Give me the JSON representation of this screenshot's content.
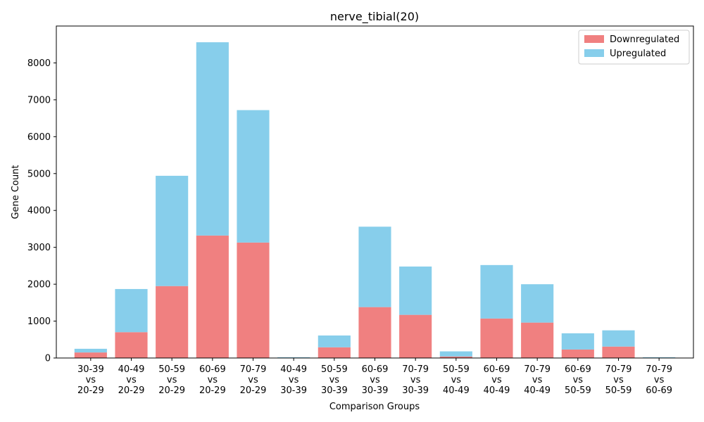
{
  "chart_data": {
    "type": "bar",
    "stacked": true,
    "title": "nerve_tibial(20)",
    "xlabel": "Comparison Groups",
    "ylabel": "Gene Count",
    "ylim": [
      0,
      9000
    ],
    "yticks": [
      0,
      1000,
      2000,
      3000,
      4000,
      5000,
      6000,
      7000,
      8000
    ],
    "legend_position": "top-right",
    "grid": false,
    "categories": [
      [
        "30-39",
        "vs",
        "20-29"
      ],
      [
        "40-49",
        "vs",
        "20-29"
      ],
      [
        "50-59",
        "vs",
        "20-29"
      ],
      [
        "60-69",
        "vs",
        "20-29"
      ],
      [
        "70-79",
        "vs",
        "20-29"
      ],
      [
        "40-49",
        "vs",
        "30-39"
      ],
      [
        "50-59",
        "vs",
        "30-39"
      ],
      [
        "60-69",
        "vs",
        "30-39"
      ],
      [
        "70-79",
        "vs",
        "30-39"
      ],
      [
        "50-59",
        "vs",
        "40-49"
      ],
      [
        "60-69",
        "vs",
        "40-49"
      ],
      [
        "70-79",
        "vs",
        "40-49"
      ],
      [
        "60-69",
        "vs",
        "50-59"
      ],
      [
        "70-79",
        "vs",
        "50-59"
      ],
      [
        "70-79",
        "vs",
        "60-69"
      ]
    ],
    "series": [
      {
        "name": "Downregulated",
        "color": "#f08080",
        "values": [
          150,
          700,
          1950,
          3320,
          3130,
          10,
          290,
          1380,
          1170,
          40,
          1070,
          960,
          230,
          310,
          10
        ]
      },
      {
        "name": "Upregulated",
        "color": "#87ceeb",
        "values": [
          100,
          1170,
          2990,
          5240,
          3590,
          10,
          320,
          2180,
          1310,
          140,
          1450,
          1040,
          440,
          440,
          10
        ]
      }
    ]
  }
}
